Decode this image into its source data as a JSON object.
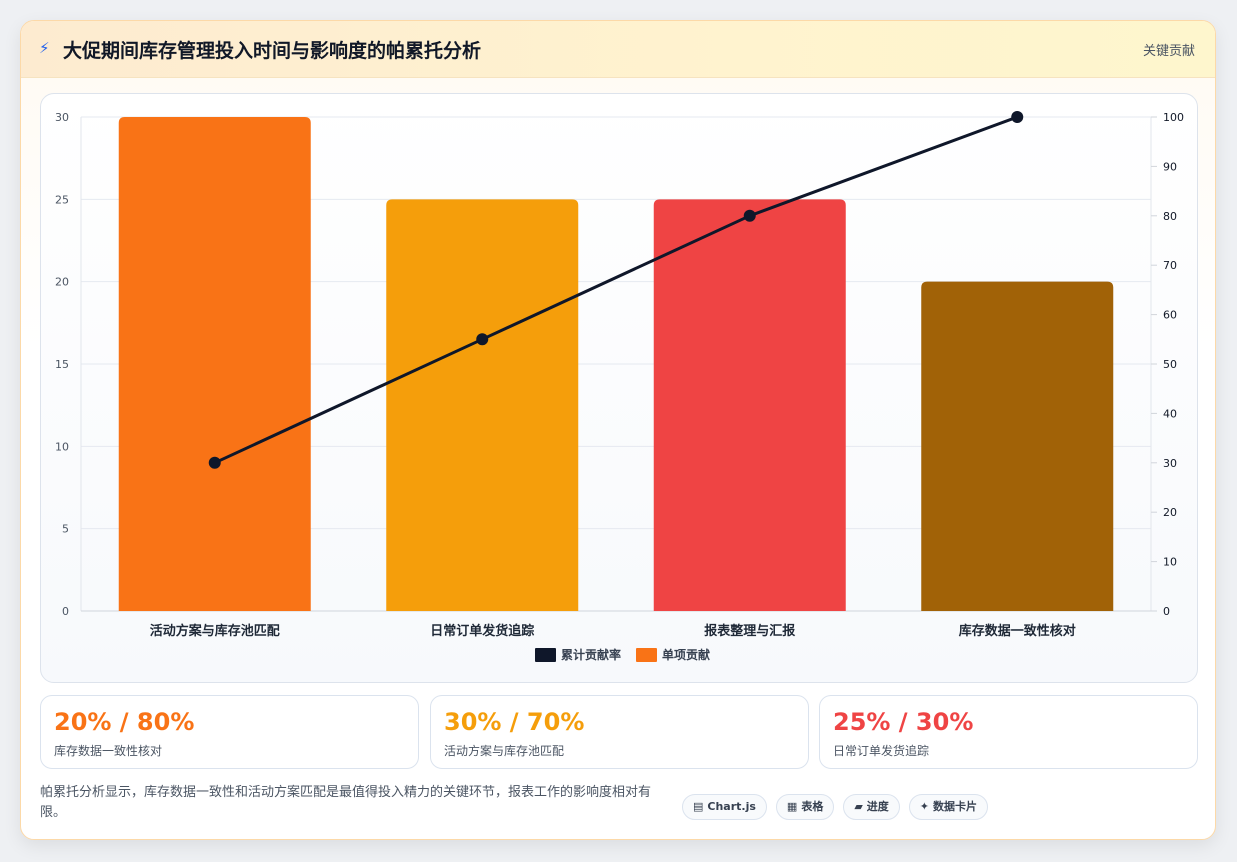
{
  "header": {
    "icon": "lightning-icon",
    "icon_glyph": "⚡",
    "title": "大促期间库存管理投入时间与影响度的帕累托分析",
    "badge": "关键贡献"
  },
  "chart_data": {
    "type": "bar",
    "categories": [
      "活动方案与库存池匹配",
      "日常订单发货追踪",
      "报表整理与汇报",
      "库存数据一致性核对"
    ],
    "series": [
      {
        "name": "单项贡献",
        "type": "bar",
        "axis": "left",
        "values": [
          30,
          25,
          25,
          20
        ],
        "colors": [
          "#f97316",
          "#f59e0b",
          "#ef4444",
          "#a16207"
        ]
      },
      {
        "name": "累计贡献率",
        "type": "line",
        "axis": "right",
        "values": [
          30,
          55,
          80,
          100
        ],
        "color": "#0f172a"
      }
    ],
    "y_left": {
      "min": 0,
      "max": 30,
      "ticks": [
        0,
        5,
        10,
        15,
        20,
        25,
        30
      ]
    },
    "y_right": {
      "min": 0,
      "max": 100,
      "ticks": [
        0,
        10,
        20,
        30,
        40,
        50,
        60,
        70,
        80,
        90,
        100
      ]
    },
    "grid": true,
    "legend": {
      "placement": "bottom",
      "items": [
        {
          "label": "累计贡献率",
          "color": "#0f172a"
        },
        {
          "label": "单项贡献",
          "color": "#f97316"
        }
      ]
    }
  },
  "stats": [
    {
      "value": "20% / 80%",
      "label": "库存数据一致性核对",
      "color": "#f97316"
    },
    {
      "value": "30% / 70%",
      "label": "活动方案与库存池匹配",
      "color": "#f59e0b"
    },
    {
      "value": "25% / 30%",
      "label": "日常订单发货追踪",
      "color": "#ef4444"
    }
  ],
  "footer": {
    "summary": "帕累托分析显示，库存数据一致性和活动方案匹配是最值得投入精力的关键环节，报表工作的影响度相对有限。",
    "pills": [
      {
        "icon": "chart-icon",
        "glyph": "▤",
        "label": "Chart.js"
      },
      {
        "icon": "table-icon",
        "glyph": "▦",
        "label": "表格"
      },
      {
        "icon": "progress-icon",
        "glyph": "▰",
        "label": "进度"
      },
      {
        "icon": "sparkle-icon",
        "glyph": "✦",
        "label": "数据卡片"
      }
    ]
  }
}
